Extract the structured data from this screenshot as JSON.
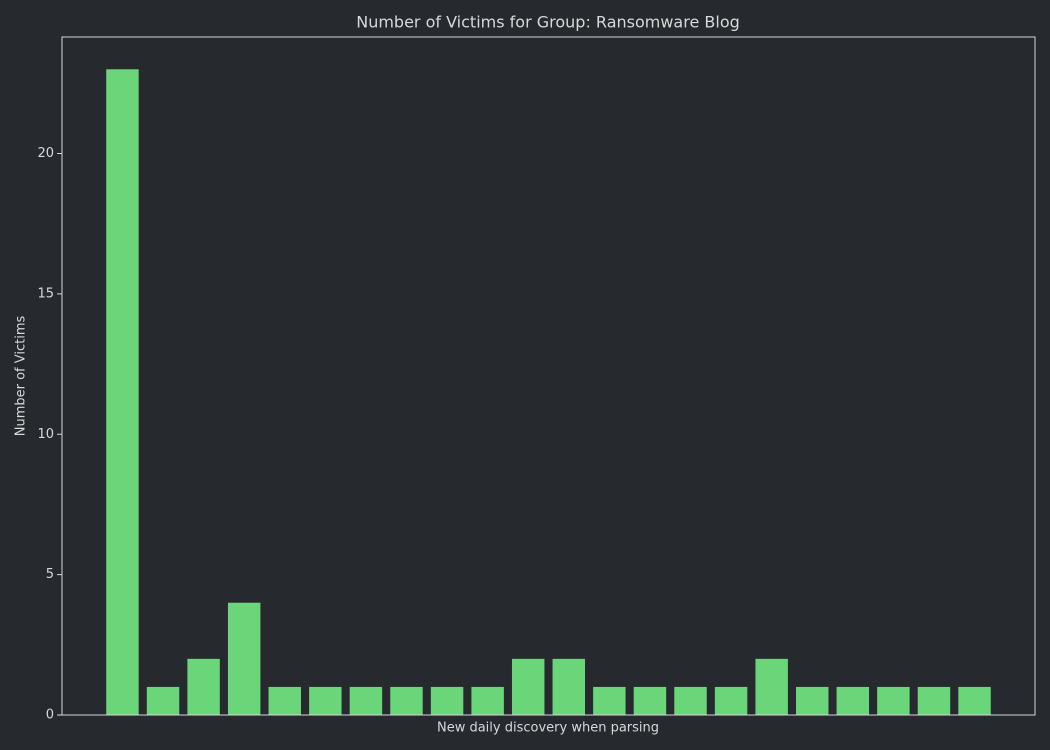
{
  "chart_data": {
    "type": "bar",
    "title": "Number of Victims for Group: Ransomware Blog",
    "x_label": "New daily discovery when parsing",
    "y_label": "Number of Victims",
    "categories": [
      null,
      null,
      null,
      null,
      null,
      null,
      null,
      null,
      null,
      null,
      null,
      null,
      null,
      null,
      null,
      null,
      null,
      null,
      null,
      null,
      null,
      null
    ],
    "values": [
      23,
      1,
      2,
      4,
      1,
      1,
      1,
      1,
      1,
      1,
      2,
      2,
      1,
      1,
      1,
      1,
      2,
      1,
      1,
      1,
      1,
      1
    ],
    "color": "#6bd57a",
    "ylim": [
      0,
      24.15
    ],
    "yticks": [
      0,
      5,
      10,
      15,
      20
    ],
    "grid": false
  }
}
